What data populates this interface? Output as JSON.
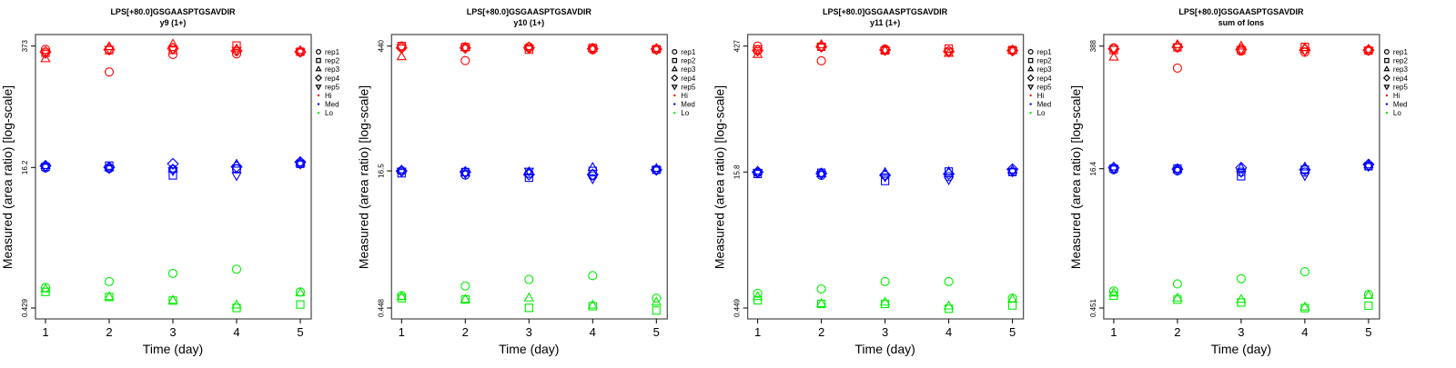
{
  "chart_data": [
    {
      "type": "scatter",
      "title": "LPS[+80.0]GSGAASPTGSAVDIR",
      "subtitle": "y9 (1+)",
      "xlabel": "Time (day)",
      "ylabel": "Measured (area ratio) [log-scale]",
      "x": [
        1,
        2,
        3,
        4,
        5
      ],
      "yticks": [
        373,
        16.2,
        0.429
      ],
      "yscale": "log",
      "series": {
        "Hi": [
          [
            343,
            191,
            300,
            305,
            320
          ],
          [
            314,
            335,
            338,
            378,
            322
          ],
          [
            267,
            365,
            390,
            345,
            330
          ],
          [
            320,
            340,
            350,
            330,
            322
          ],
          [
            310,
            345,
            345,
            335,
            322
          ]
        ],
        "Med": [
          [
            16.0,
            15.8,
            15.5,
            15.6,
            17.8
          ],
          [
            16.5,
            17.0,
            13.2,
            15.8,
            17.8
          ],
          [
            16.9,
            16.0,
            15.5,
            17.5,
            18.2
          ],
          [
            16.9,
            16.2,
            17.8,
            16.5,
            18.6
          ],
          [
            16.4,
            15.8,
            15.0,
            13.2,
            17.8
          ]
        ],
        "Lo": [
          [
            0.73,
            0.85,
            1.05,
            1.17,
            0.65
          ],
          [
            0.65,
            0.57,
            0.52,
            0.43,
            0.47
          ],
          [
            0.7,
            0.57,
            0.52,
            0.46,
            0.63
          ]
        ]
      }
    },
    {
      "type": "scatter",
      "title": "LPS[+80.0]GSGAASPTGSAVDIR",
      "subtitle": "y10 (1+)",
      "xlabel": "Time (day)",
      "ylabel": "Measured (area ratio) [log-scale]",
      "x": [
        1,
        2,
        3,
        4,
        5
      ],
      "yticks": [
        440,
        16.5,
        0.448
      ],
      "yscale": "log",
      "series": {
        "Hi": [
          [
            440,
            300,
            430,
            400,
            405
          ],
          [
            440,
            430,
            400,
            420,
            405
          ],
          [
            330,
            420,
            430,
            410,
            410
          ],
          [
            420,
            420,
            420,
            410,
            405
          ],
          [
            420,
            420,
            420,
            410,
            405
          ]
        ],
        "Med": [
          [
            16.5,
            14.8,
            15.5,
            14.5,
            17.0
          ],
          [
            15.5,
            16.0,
            13.8,
            16.5,
            17.0
          ],
          [
            16.8,
            15.5,
            16.0,
            18.0,
            17.5
          ],
          [
            16.5,
            16.0,
            15.0,
            15.0,
            17.0
          ],
          [
            16.5,
            15.5,
            16.5,
            13.5,
            17.0
          ]
        ],
        "Lo": [
          [
            0.62,
            0.8,
            0.95,
            1.05,
            0.58
          ],
          [
            0.58,
            0.56,
            0.45,
            0.47,
            0.42
          ],
          [
            0.6,
            0.56,
            0.58,
            0.48,
            0.52
          ]
        ]
      }
    },
    {
      "type": "scatter",
      "title": "LPS[+80.0]GSGAASPTGSAVDIR",
      "subtitle": "y11 (1+)",
      "xlabel": "Time (day)",
      "ylabel": "Measured (area ratio) [log-scale]",
      "x": [
        1,
        2,
        3,
        4,
        5
      ],
      "yticks": [
        427,
        15.8,
        0.449
      ],
      "yscale": "log",
      "series": {
        "Hi": [
          [
            427,
            290,
            395,
            375,
            380
          ],
          [
            390,
            420,
            380,
            400,
            385
          ],
          [
            340,
            440,
            380,
            350,
            380
          ],
          [
            380,
            420,
            385,
            370,
            380
          ],
          [
            380,
            420,
            385,
            370,
            380
          ]
        ],
        "Med": [
          [
            15.5,
            14.5,
            14.5,
            14.0,
            15.8
          ],
          [
            15.0,
            15.5,
            12.5,
            16.0,
            15.8
          ],
          [
            16.0,
            15.0,
            15.5,
            15.8,
            16.5
          ],
          [
            15.8,
            15.2,
            14.5,
            15.0,
            17.0
          ],
          [
            15.8,
            15.0,
            14.0,
            13.0,
            16.0
          ]
        ],
        "Lo": [
          [
            0.66,
            0.74,
            0.9,
            0.9,
            0.58
          ],
          [
            0.55,
            0.5,
            0.5,
            0.44,
            0.48
          ],
          [
            0.6,
            0.5,
            0.52,
            0.47,
            0.56
          ]
        ]
      }
    },
    {
      "type": "scatter",
      "title": "LPS[+80.0]GSGAASPTGSAVDIR",
      "subtitle": "sum of Ions",
      "xlabel": "Time (day)",
      "ylabel": "Measured (area ratio) [log-scale]",
      "x": [
        1,
        2,
        3,
        4,
        5
      ],
      "yticks": [
        388,
        16.4,
        0.451
      ],
      "yscale": "log",
      "series": {
        "Hi": [
          [
            370,
            220,
            340,
            330,
            345
          ],
          [
            350,
            375,
            350,
            380,
            345
          ],
          [
            290,
            400,
            385,
            370,
            355
          ],
          [
            360,
            380,
            355,
            350,
            350
          ],
          [
            360,
            380,
            355,
            345,
            350
          ]
        ],
        "Med": [
          [
            16.0,
            15.5,
            15.0,
            15.0,
            17.5
          ],
          [
            16.5,
            16.5,
            13.5,
            16.0,
            17.5
          ],
          [
            17.0,
            16.0,
            16.5,
            17.0,
            18.0
          ],
          [
            16.8,
            16.2,
            16.8,
            16.0,
            18.3
          ],
          [
            16.4,
            15.8,
            15.0,
            13.8,
            17.5
          ]
        ],
        "Lo": [
          [
            0.7,
            0.84,
            0.96,
            1.15,
            0.64
          ],
          [
            0.62,
            0.56,
            0.52,
            0.45,
            0.48
          ],
          [
            0.66,
            0.58,
            0.56,
            0.46,
            0.62
          ]
        ]
      }
    }
  ],
  "legend": {
    "placement": "right",
    "reps": [
      "rep1",
      "rep2",
      "rep3",
      "rep4",
      "rep5"
    ],
    "rep_shapes": [
      "circle",
      "square",
      "triangle-up",
      "diamond",
      "triangle-down"
    ],
    "levels": [
      "Hi",
      "Med",
      "Lo"
    ],
    "colors": {
      "Hi": "#ff0000",
      "Med": "#0000ff",
      "Lo": "#00ee00"
    }
  }
}
